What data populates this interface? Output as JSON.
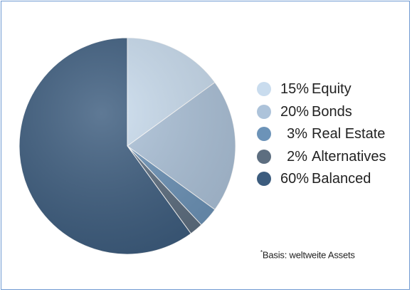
{
  "chart_data": {
    "type": "pie",
    "series": [
      {
        "label": "Equity",
        "pct": "15%",
        "value": 15,
        "color": "#c9dcee"
      },
      {
        "label": "Bonds",
        "pct": "20%",
        "value": 20,
        "color": "#adc3da"
      },
      {
        "label": "Real Estate",
        "pct": "3%",
        "value": 3,
        "color": "#6c93b8"
      },
      {
        "label": "Alternatives",
        "pct": "2%",
        "value": 2,
        "color": "#5d6e80"
      },
      {
        "label": "Balanced",
        "pct": "60%",
        "value": 60,
        "color": "#3c5c7e"
      }
    ],
    "legend_position": "right"
  },
  "footnote": {
    "marker": "*",
    "text": "Basis: weltweite Assets"
  }
}
